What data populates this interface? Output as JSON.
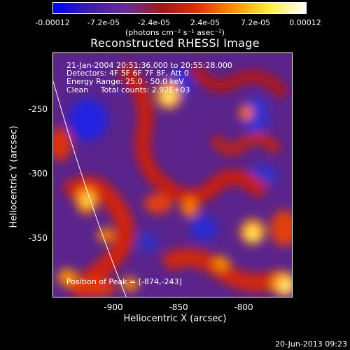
{
  "colorbar": {
    "ticks": [
      "-0.00012",
      "-7.2e-05",
      "-2.4e-05",
      "2.4e-05",
      "7.2e-05",
      "0.00012"
    ],
    "units": "(photons cm⁻² s⁻¹ asec⁻²)",
    "colors": [
      "#0000ff",
      "#3c1eaa",
      "#6a2a9a",
      "#a01818",
      "#e03000",
      "#ff9000",
      "#ffee40",
      "#ffffff"
    ]
  },
  "title": "Reconstructed RHESSI Image",
  "info": {
    "line1": "21-Jan-2004 20:51:36.000 to 20:55:28.000",
    "line2": "Detectors: 4F 5F 6F 7F 8F, Att 0",
    "line3": "Energy Range: 25.0 - 50.0 keV",
    "line4": "Clean     Total counts: 2.92E+03"
  },
  "peak_label": "Position of Peak = [-874,-243]",
  "axes": {
    "xlabel": "Heliocentric X (arcsec)",
    "ylabel": "Heliocentric Y (arcsec)",
    "xticks": [
      "-900",
      "-850",
      "-800"
    ],
    "yticks": [
      "-250",
      "-300",
      "-350"
    ]
  },
  "timestamp": "20-Jun-2013 09:23"
}
